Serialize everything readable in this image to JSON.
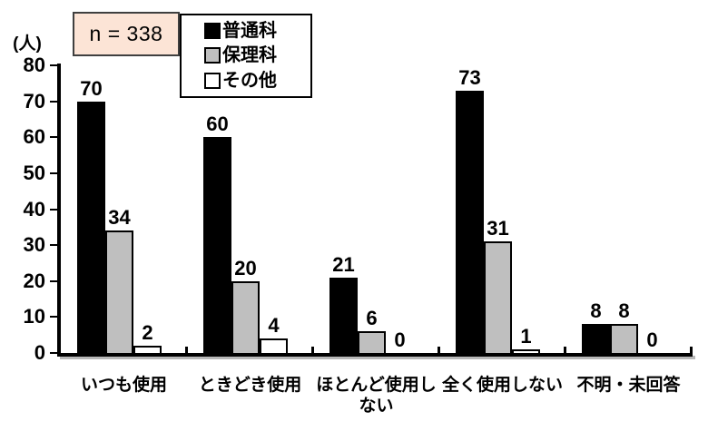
{
  "chart_data": {
    "type": "bar",
    "title": "",
    "annotation": "n = 338",
    "ylabel": "(人)",
    "ylim": [
      0,
      80
    ],
    "ytick_step": 10,
    "grid": false,
    "legend_position": "top-center",
    "categories": [
      "いつも使用",
      "ときどき使用",
      "ほとんど使用し\nない",
      "全く使用しない",
      "不明・未回答"
    ],
    "series": [
      {
        "name": "普通科",
        "color": "#000000",
        "values": [
          70,
          60,
          21,
          73,
          8
        ]
      },
      {
        "name": "保理科",
        "color": "#BFBFBF",
        "values": [
          34,
          20,
          6,
          31,
          8
        ]
      },
      {
        "name": "その他",
        "color": "#FFFFFF",
        "values": [
          2,
          4,
          0,
          1,
          0
        ]
      }
    ],
    "colors": {
      "annotation_bg": "#FCE4D6",
      "annotation_border": "#3F3F3F",
      "axis": "#000000",
      "bar_border": "#000000"
    }
  }
}
